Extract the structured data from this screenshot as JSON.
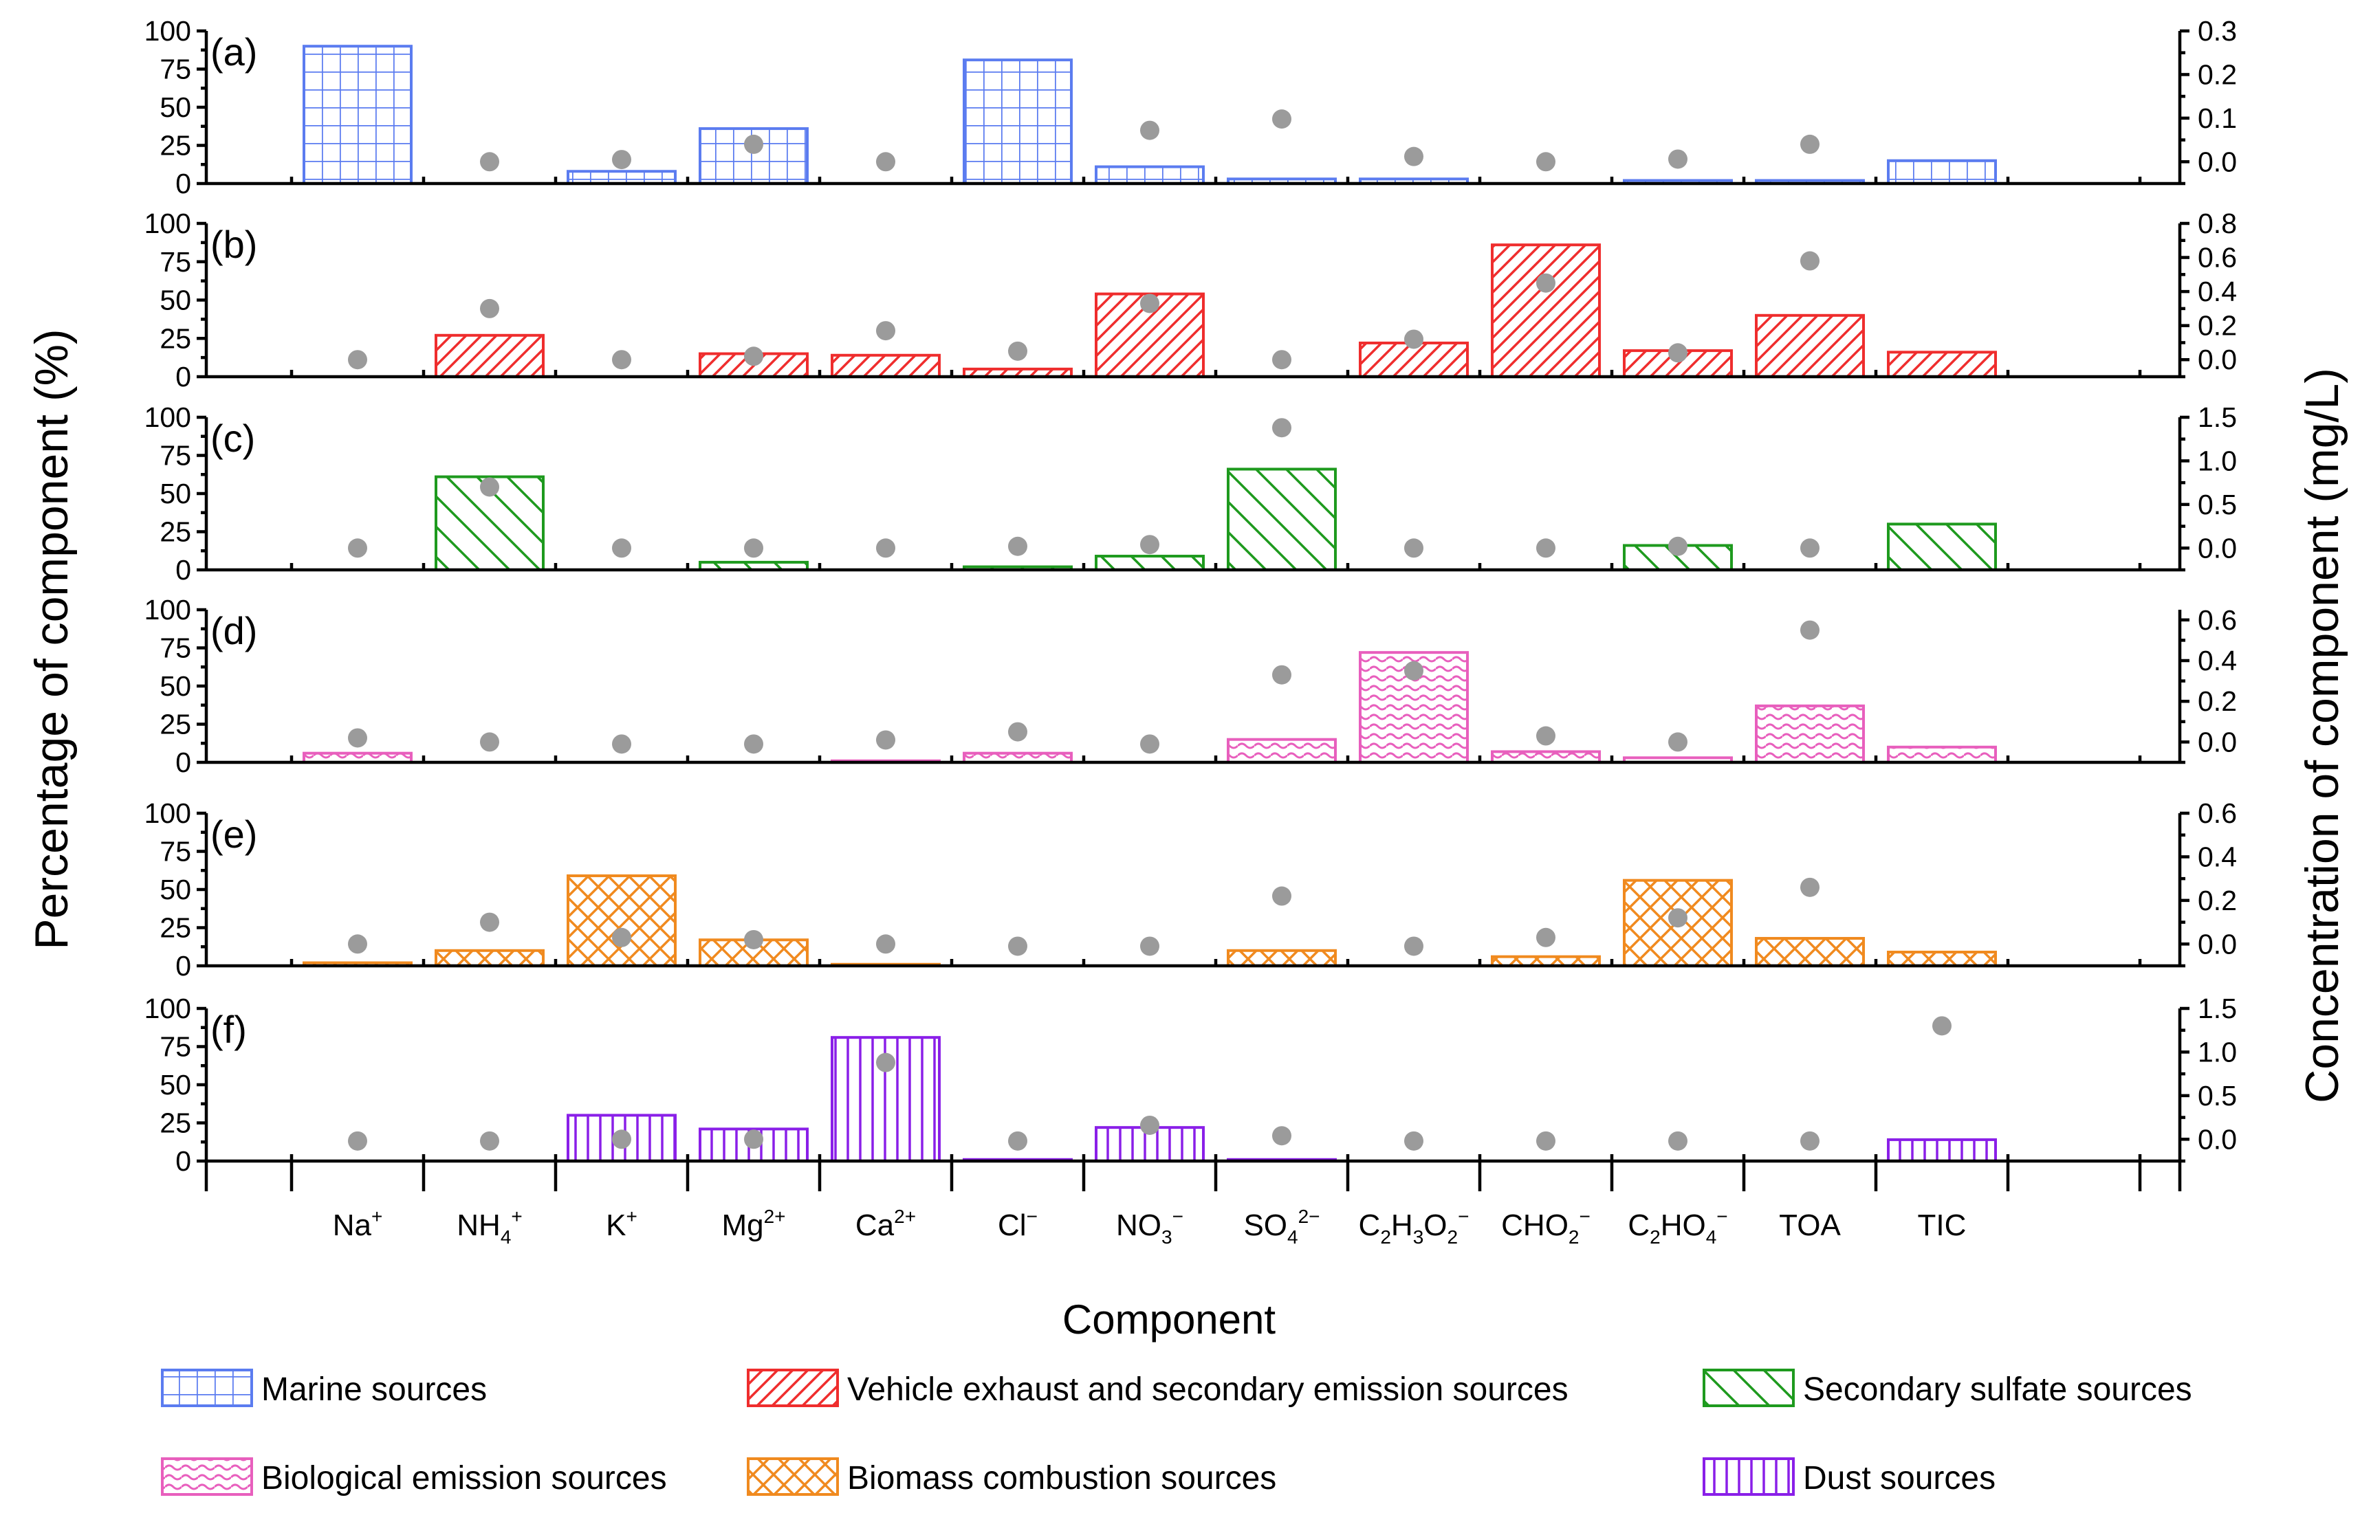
{
  "chart_data": {
    "type": "bar",
    "ylabel_left": "Percentage of component (%)",
    "ylabel_right": "Concentration of component (mg/L)",
    "xlabel": "Component",
    "categories": [
      {
        "base": "Na",
        "parts": [
          [
            "sup",
            "+"
          ]
        ]
      },
      {
        "base": "NH",
        "parts": [
          [
            "sub",
            "4"
          ],
          [
            "sup",
            "+"
          ]
        ]
      },
      {
        "base": "K",
        "parts": [
          [
            "sup",
            "+"
          ]
        ]
      },
      {
        "base": "Mg",
        "parts": [
          [
            "sup",
            "2+"
          ]
        ]
      },
      {
        "base": "Ca",
        "parts": [
          [
            "sup",
            "2+"
          ]
        ]
      },
      {
        "base": "Cl",
        "parts": [
          [
            "sup",
            "−"
          ]
        ]
      },
      {
        "base": "NO",
        "parts": [
          [
            "sub",
            "3"
          ],
          [
            "sup",
            "−"
          ]
        ]
      },
      {
        "base": "SO",
        "parts": [
          [
            "sub",
            "4"
          ],
          [
            "sup",
            "2−"
          ]
        ]
      },
      {
        "base": "C",
        "parts": [
          [
            "sub",
            "2"
          ],
          [
            "text",
            "H"
          ],
          [
            "sub",
            "3"
          ],
          [
            "text",
            "O"
          ],
          [
            "sub",
            "2"
          ],
          [
            "sup",
            "−"
          ]
        ]
      },
      {
        "base": "CHO",
        "parts": [
          [
            "sub",
            "2"
          ],
          [
            "sup",
            "−"
          ]
        ]
      },
      {
        "base": "C",
        "parts": [
          [
            "sub",
            "2"
          ],
          [
            "text",
            "HO"
          ],
          [
            "sub",
            "4"
          ],
          [
            "sup",
            "−"
          ]
        ]
      },
      {
        "base": "TOA",
        "parts": []
      },
      {
        "base": "TIC",
        "parts": []
      }
    ],
    "left_ylim": [
      0,
      100
    ],
    "left_ticks": [
      "100",
      "75",
      "50",
      "25",
      "0"
    ],
    "panels": [
      {
        "label": "(a)",
        "name": "Marine sources",
        "color": "#5b7cf0",
        "pattern": "grid",
        "bars": [
          90,
          0,
          8,
          36,
          0,
          81,
          11,
          3,
          3,
          0,
          2,
          2,
          15
        ],
        "right_ylim": [
          -0.05,
          0.3
        ],
        "right_ticks": [
          "0.3",
          "0.2",
          "0.1",
          "0.0"
        ],
        "right_tick_values": [
          0.3,
          0.2,
          0.1,
          0.0
        ],
        "dots": [
          null,
          0.0,
          0.005,
          0.04,
          0.0,
          null,
          0.072,
          0.098,
          0.012,
          0.0,
          0.006,
          0.04,
          null
        ]
      },
      {
        "label": "(b)",
        "name": "Vehicle exhaust and secondary emission sources",
        "color": "#ef2d2d",
        "pattern": "diag-forward",
        "bars": [
          0,
          27,
          0,
          15,
          14,
          5,
          54,
          0,
          22,
          86,
          17,
          40,
          16
        ],
        "right_ylim": [
          -0.1,
          0.8
        ],
        "right_ticks": [
          "0.8",
          "0.6",
          "0.4",
          "0.2",
          "0.0"
        ],
        "right_tick_values": [
          0.8,
          0.6,
          0.4,
          0.2,
          0.0
        ],
        "dots": [
          0.0,
          0.3,
          0.0,
          0.02,
          0.17,
          0.05,
          0.33,
          0.0,
          0.12,
          0.45,
          0.04,
          0.58,
          null
        ]
      },
      {
        "label": "(c)",
        "name": "Secondary sulfate sources",
        "color": "#1e9a1e",
        "pattern": "diag-back",
        "bars": [
          0,
          61,
          0,
          5,
          0,
          2,
          9,
          66,
          0,
          0,
          16,
          0,
          30
        ],
        "right_ylim": [
          -0.25,
          1.5
        ],
        "right_ticks": [
          "1.5",
          "1.0",
          "0.5",
          "0.0"
        ],
        "right_tick_values": [
          1.5,
          1.0,
          0.5,
          0.0
        ],
        "dots": [
          0.0,
          0.7,
          0.0,
          0.0,
          0.0,
          0.02,
          0.04,
          1.38,
          0.0,
          0.0,
          0.02,
          0.0,
          null
        ]
      },
      {
        "label": "(d)",
        "name": "Biological emission sources",
        "color": "#e85fbd",
        "pattern": "wave",
        "bars": [
          6,
          0,
          0,
          0,
          1,
          6,
          0,
          15,
          72,
          7,
          3,
          37,
          10
        ],
        "right_ylim": [
          -0.1,
          0.65
        ],
        "right_ticks": [
          "0.6",
          "0.4",
          "0.2",
          "0.0"
        ],
        "right_tick_values": [
          0.6,
          0.4,
          0.2,
          0.0
        ],
        "dots": [
          0.02,
          0.0,
          -0.01,
          -0.01,
          0.01,
          0.05,
          -0.01,
          0.33,
          0.35,
          0.03,
          0.0,
          0.55,
          null
        ]
      },
      {
        "label": "(e)",
        "name": "Biomass combustion sources",
        "color": "#f08a1f",
        "pattern": "crosshatch",
        "bars": [
          2,
          10,
          59,
          17,
          1,
          0,
          0,
          10,
          0,
          6,
          56,
          18,
          9
        ],
        "right_ylim": [
          -0.1,
          0.6
        ],
        "right_ticks": [
          "0.6",
          "0.4",
          "0.2",
          "0.0"
        ],
        "right_tick_values": [
          0.6,
          0.4,
          0.2,
          0.0
        ],
        "dots": [
          0.0,
          0.1,
          0.03,
          0.02,
          0.0,
          -0.01,
          -0.01,
          0.22,
          -0.01,
          0.03,
          0.12,
          0.26,
          null
        ]
      },
      {
        "label": "(f)",
        "name": "Dust sources",
        "color": "#8a1fe8",
        "pattern": "vertical",
        "bars": [
          0,
          0,
          30,
          21,
          81,
          1,
          22,
          1,
          0,
          0,
          0,
          0,
          14
        ],
        "right_ylim": [
          -0.25,
          1.5
        ],
        "right_ticks": [
          "1.5",
          "1.0",
          "0.5",
          "0.0"
        ],
        "right_tick_values": [
          1.5,
          1.0,
          0.5,
          0.0
        ],
        "dots": [
          -0.02,
          -0.02,
          0.0,
          0.0,
          0.88,
          -0.02,
          0.16,
          0.04,
          -0.02,
          -0.02,
          -0.02,
          -0.02,
          1.3
        ]
      }
    ],
    "legend": [
      {
        "name": "Marine sources",
        "panel": 0
      },
      {
        "name": "Vehicle exhaust and secondary emission sources",
        "panel": 1
      },
      {
        "name": "Secondary sulfate sources",
        "panel": 2
      },
      {
        "name": "Biological emission sources",
        "panel": 3
      },
      {
        "name": "Biomass combustion sources",
        "panel": 4
      },
      {
        "name": "Dust sources",
        "panel": 5
      }
    ]
  }
}
